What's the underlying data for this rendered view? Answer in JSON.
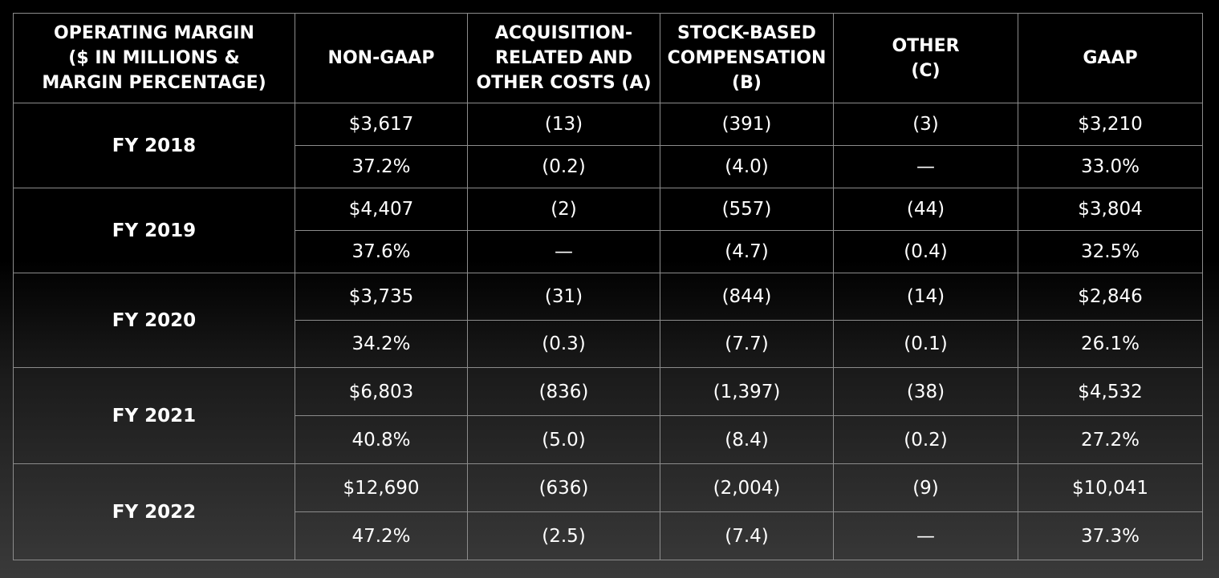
{
  "headers": [
    "OPERATING MARGIN\n($ IN MILLIONS &\nMARGIN PERCENTAGE)",
    "NON-GAAP",
    "ACQUISITION-\nRELATED AND\nOTHER COSTS (A)",
    "STOCK-BASED\nCOMPENSATION\n(B)",
    "OTHER\n(C)",
    "GAAP"
  ],
  "header_lines": [
    [
      "OPERATING MARGIN",
      "($ IN MILLIONS &",
      "MARGIN PERCENTAGE)"
    ],
    [
      "NON-GAAP"
    ],
    [
      "ACQUISITION-",
      "RELATED AND",
      "OTHER COSTS (A)"
    ],
    [
      "STOCK-BASED",
      "COMPENSATION",
      "(B)"
    ],
    [
      "OTHER",
      "(C)"
    ],
    [
      "GAAP"
    ]
  ],
  "rows": [
    {
      "year": "FY 2018",
      "dollars": [
        "$3,617",
        "(13)",
        "(391)",
        "(3)",
        "$3,210"
      ],
      "percent": [
        "37.2%",
        "(0.2)",
        "(4.0)",
        "—",
        "33.0%"
      ]
    },
    {
      "year": "FY 2019",
      "dollars": [
        "$4,407",
        "(2)",
        "(557)",
        "(44)",
        "$3,804"
      ],
      "percent": [
        "37.6%",
        "—",
        "(4.7)",
        "(0.4)",
        "32.5%"
      ]
    },
    {
      "year": "FY 2020",
      "dollars": [
        "$3,735",
        "(31)",
        "(844)",
        "(14)",
        "$2,846"
      ],
      "percent": [
        "34.2%",
        "(0.3)",
        "(7.7)",
        "(0.1)",
        "26.1%"
      ]
    },
    {
      "year": "FY 2021",
      "dollars": [
        "$6,803",
        "(836)",
        "(1,397)",
        "(38)",
        "$4,532"
      ],
      "percent": [
        "40.8%",
        "(5.0)",
        "(8.4)",
        "(0.2)",
        "27.2%"
      ]
    },
    {
      "year": "FY 2022",
      "dollars": [
        "$12,690",
        "(636)",
        "(2,004)",
        "(9)",
        "$10,041"
      ],
      "percent": [
        "47.2%",
        "(2.5)",
        "(7.4)",
        "—",
        "37.3%"
      ]
    }
  ]
}
